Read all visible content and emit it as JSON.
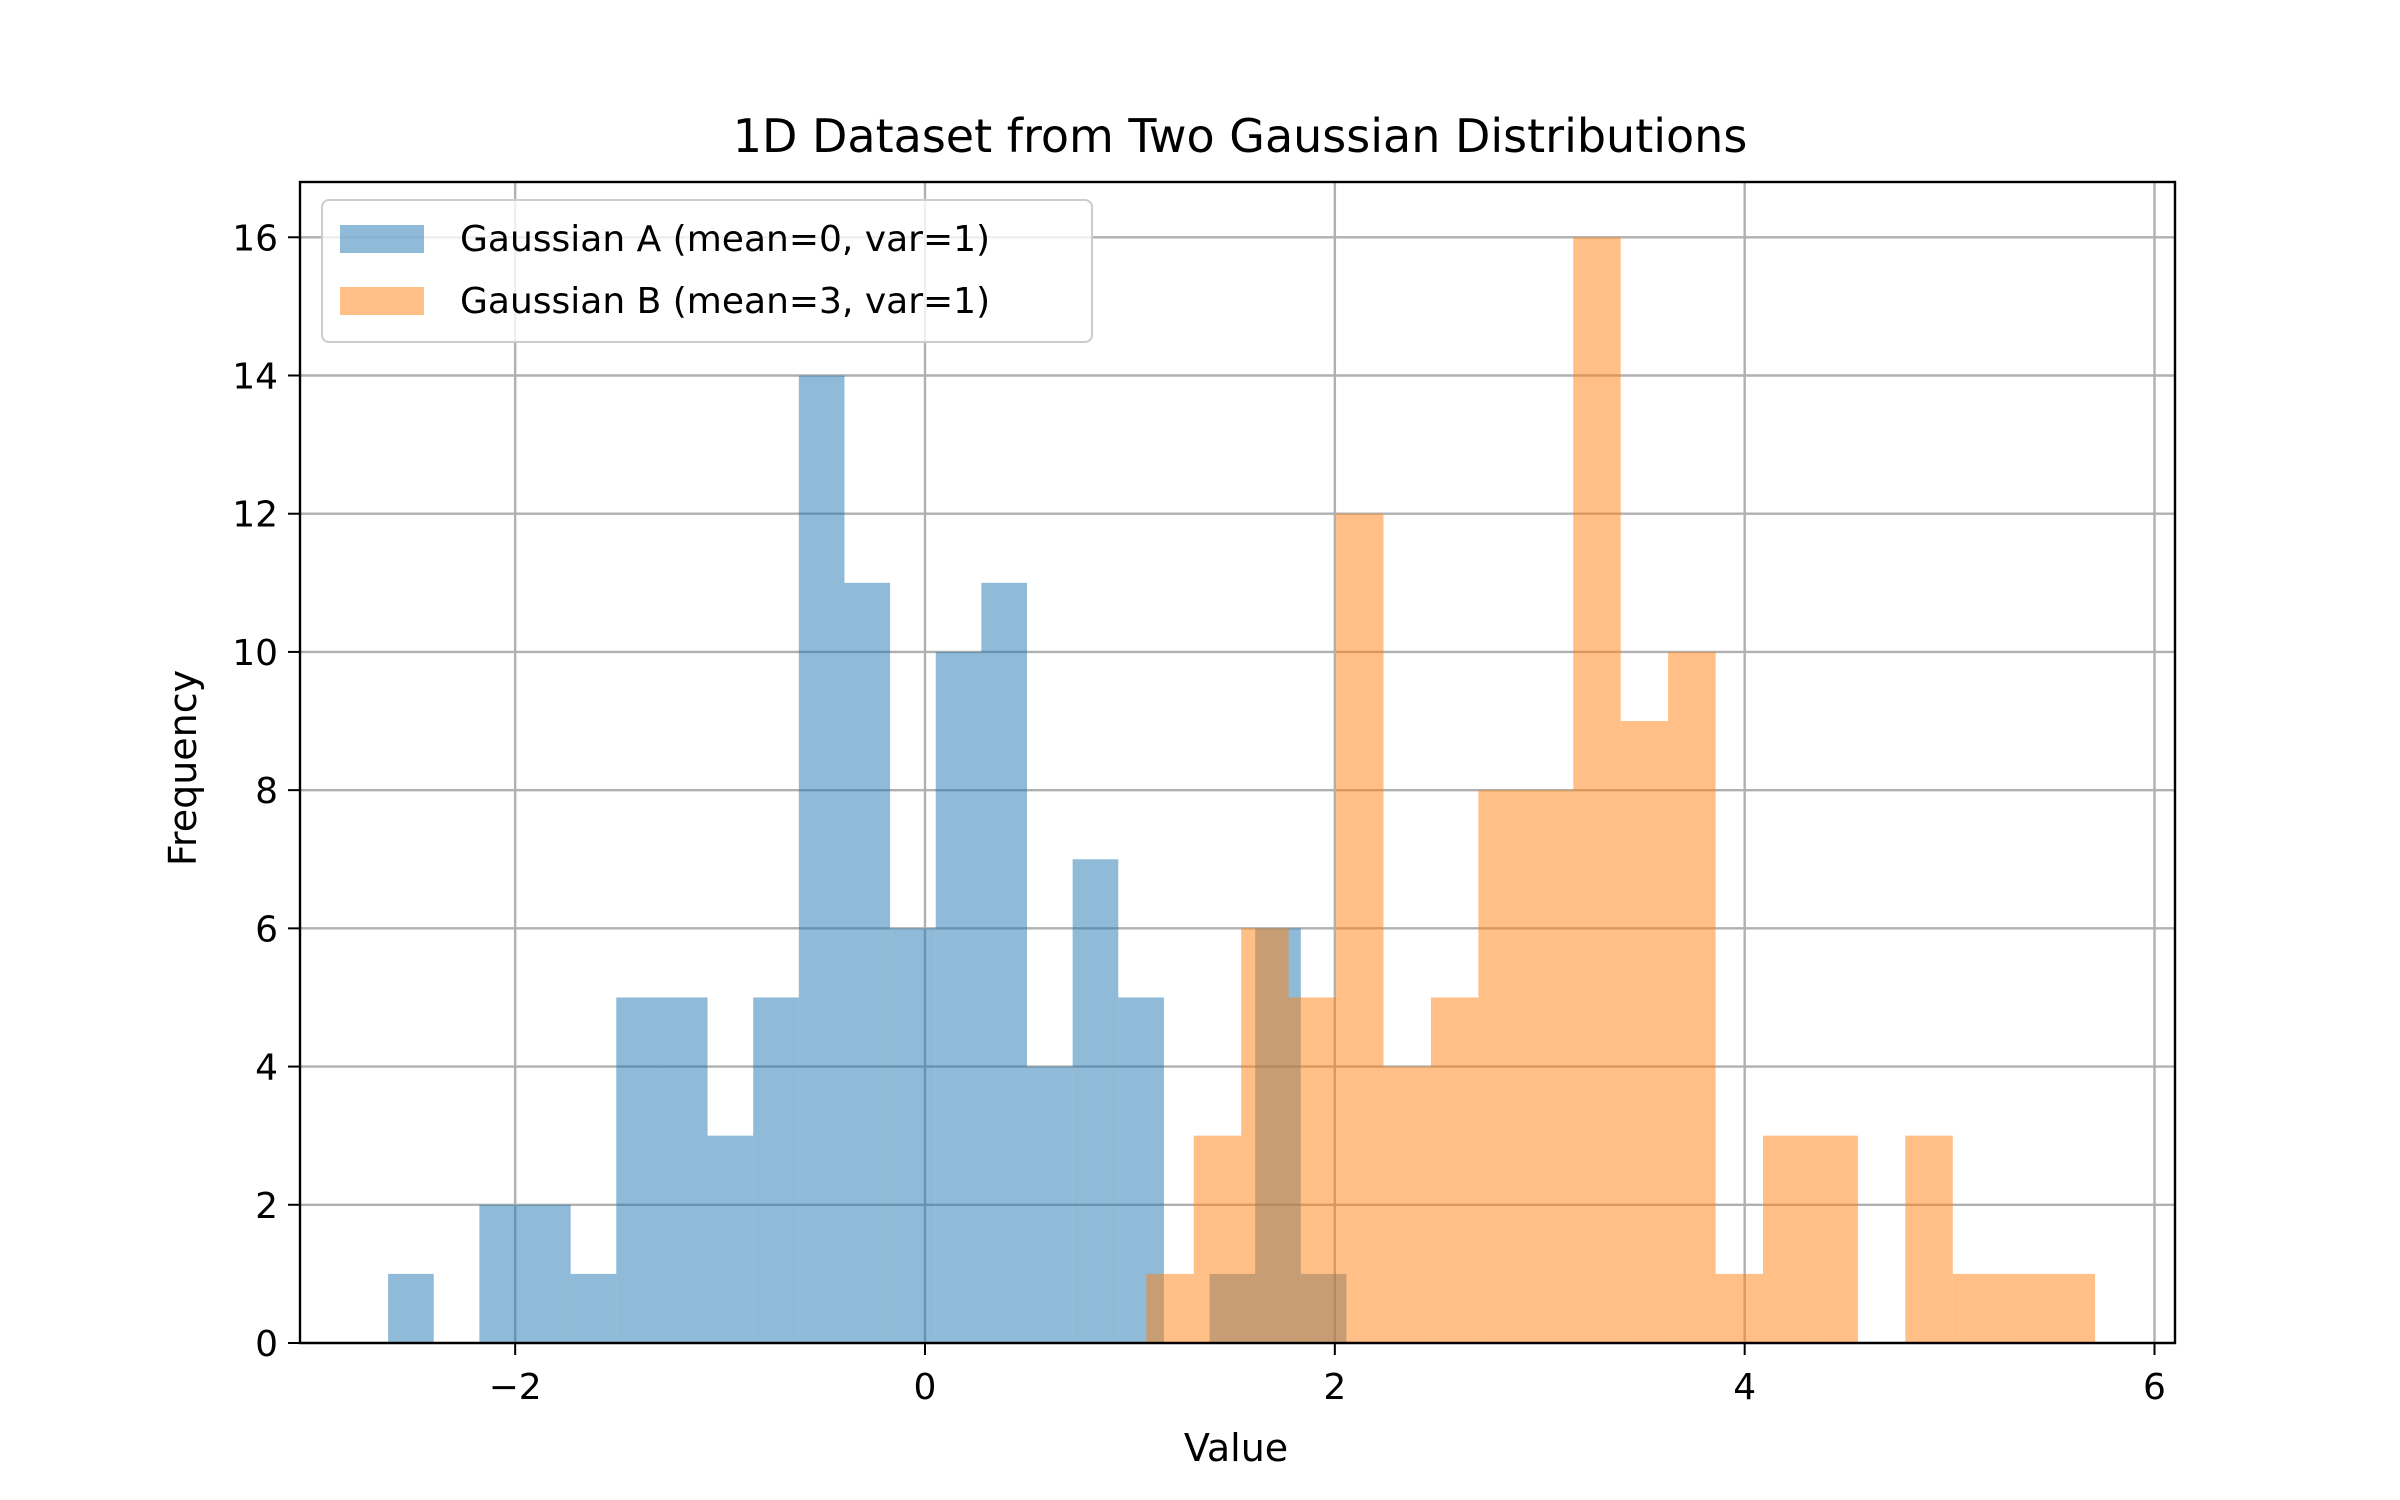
{
  "chart_data": {
    "type": "bar",
    "title": "1D Dataset from Two Gaussian Distributions",
    "xlabel": "Value",
    "ylabel": "Frequency",
    "xlim": [
      -3.05,
      6.1
    ],
    "ylim": [
      0,
      16.8
    ],
    "xticks": [
      -2,
      0,
      2,
      4,
      6
    ],
    "xtick_labels": [
      "−2",
      "0",
      "2",
      "4",
      "6"
    ],
    "yticks": [
      0,
      2,
      4,
      6,
      8,
      10,
      12,
      14,
      16
    ],
    "ytick_labels": [
      "0",
      "2",
      "4",
      "6",
      "8",
      "10",
      "12",
      "14",
      "16"
    ],
    "grid": true,
    "legend_position": "top-left",
    "series": [
      {
        "name": "Gaussian A (mean=0, var=1)",
        "color": "#1f77b4",
        "opacity": 0.5,
        "bin_start": -2.62,
        "bin_width": 0.2227,
        "counts": [
          1,
          0,
          2,
          2,
          1,
          5,
          5,
          3,
          5,
          14,
          11,
          6,
          10,
          11,
          4,
          7,
          5,
          0,
          1,
          6,
          1
        ]
      },
      {
        "name": "Gaussian B (mean=3, var=1)",
        "color": "#ff7f0e",
        "opacity": 0.5,
        "bin_start": 1.08,
        "bin_width": 0.2315,
        "counts": [
          1,
          3,
          6,
          5,
          12,
          4,
          5,
          8,
          8,
          16,
          9,
          10,
          1,
          3,
          3,
          0,
          3,
          1,
          1,
          1
        ]
      }
    ]
  }
}
